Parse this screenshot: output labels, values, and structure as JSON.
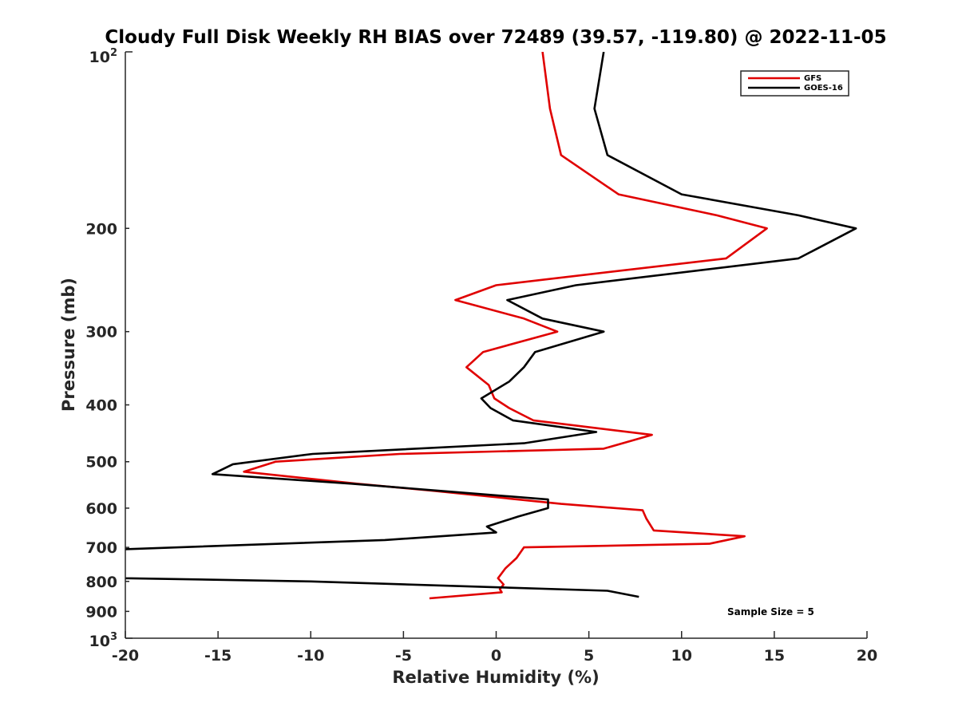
{
  "chart_data": {
    "type": "line",
    "title": "Cloudy Full Disk Weekly RH BIAS over 72489 (39.57, -119.80) @ 2022-11-05",
    "xlabel": "Relative Humidity (%)",
    "ylabel": "Pressure (mb)",
    "xlim": [
      -20,
      20
    ],
    "ylim": [
      100,
      1000
    ],
    "y_scale": "log",
    "y_reversed": true,
    "grid": false,
    "legend_position": "top-right",
    "x_ticks": [
      -20,
      -15,
      -10,
      -5,
      0,
      5,
      10,
      15,
      20
    ],
    "x_tick_labels": [
      "-20",
      "-15",
      "-10",
      "-5",
      "0",
      "5",
      "10",
      "15",
      "20"
    ],
    "y_ticks": [
      200,
      300,
      400,
      500,
      600,
      700,
      800,
      900
    ],
    "y_tick_labels": [
      "200",
      "300",
      "400",
      "500",
      "600",
      "700",
      "800",
      "900"
    ],
    "y_top_label": {
      "base": "10",
      "exp": "2"
    },
    "y_bottom_label": {
      "base": "10",
      "exp": "3"
    },
    "annotation": "Sample Size = 5",
    "series": [
      {
        "name": "GFS",
        "color": "#e00000",
        "points": [
          {
            "x": 2.5,
            "p": 100
          },
          {
            "x": 2.9,
            "p": 125
          },
          {
            "x": 3.5,
            "p": 150
          },
          {
            "x": 6.6,
            "p": 175
          },
          {
            "x": 11.9,
            "p": 190
          },
          {
            "x": 14.6,
            "p": 200
          },
          {
            "x": 12.4,
            "p": 225
          },
          {
            "x": 0.0,
            "p": 250
          },
          {
            "x": -2.2,
            "p": 265
          },
          {
            "x": 1.5,
            "p": 285
          },
          {
            "x": 3.3,
            "p": 300
          },
          {
            "x": -0.7,
            "p": 325
          },
          {
            "x": -1.6,
            "p": 345
          },
          {
            "x": -0.4,
            "p": 370
          },
          {
            "x": -0.1,
            "p": 390
          },
          {
            "x": 0.7,
            "p": 405
          },
          {
            "x": 2.0,
            "p": 425
          },
          {
            "x": 8.4,
            "p": 450
          },
          {
            "x": 5.8,
            "p": 475
          },
          {
            "x": -5.2,
            "p": 485
          },
          {
            "x": -11.9,
            "p": 500
          },
          {
            "x": -13.6,
            "p": 520
          },
          {
            "x": -7.5,
            "p": 545
          },
          {
            "x": -3.5,
            "p": 560
          },
          {
            "x": 3.5,
            "p": 590
          },
          {
            "x": 7.9,
            "p": 605
          },
          {
            "x": 8.1,
            "p": 625
          },
          {
            "x": 8.5,
            "p": 655
          },
          {
            "x": 13.4,
            "p": 670
          },
          {
            "x": 11.5,
            "p": 690
          },
          {
            "x": 1.5,
            "p": 700
          },
          {
            "x": 1.1,
            "p": 730
          },
          {
            "x": 0.5,
            "p": 760
          },
          {
            "x": 0.1,
            "p": 790
          },
          {
            "x": 0.4,
            "p": 810
          },
          {
            "x": 0.2,
            "p": 825
          },
          {
            "x": 0.3,
            "p": 835
          },
          {
            "x": -3.6,
            "p": 855
          }
        ]
      },
      {
        "name": "GOES-16",
        "color": "#000000",
        "points": [
          {
            "x": 5.8,
            "p": 100
          },
          {
            "x": 5.3,
            "p": 125
          },
          {
            "x": 6.0,
            "p": 150
          },
          {
            "x": 10.0,
            "p": 175
          },
          {
            "x": 16.3,
            "p": 190
          },
          {
            "x": 19.4,
            "p": 200
          },
          {
            "x": 16.3,
            "p": 225
          },
          {
            "x": 4.3,
            "p": 250
          },
          {
            "x": 0.6,
            "p": 265
          },
          {
            "x": 2.5,
            "p": 285
          },
          {
            "x": 5.8,
            "p": 300
          },
          {
            "x": 2.1,
            "p": 325
          },
          {
            "x": 1.5,
            "p": 345
          },
          {
            "x": 0.7,
            "p": 365
          },
          {
            "x": -0.8,
            "p": 390
          },
          {
            "x": -0.3,
            "p": 405
          },
          {
            "x": 0.9,
            "p": 425
          },
          {
            "x": 5.4,
            "p": 445
          },
          {
            "x": 1.5,
            "p": 465
          },
          {
            "x": -9.9,
            "p": 485
          },
          {
            "x": -14.2,
            "p": 505
          },
          {
            "x": -15.3,
            "p": 525
          },
          {
            "x": -7.8,
            "p": 545
          },
          {
            "x": -3.2,
            "p": 560
          },
          {
            "x": 2.8,
            "p": 580
          },
          {
            "x": 2.8,
            "p": 600
          },
          {
            "x": 1.2,
            "p": 620
          },
          {
            "x": -0.5,
            "p": 645
          },
          {
            "x": 0.0,
            "p": 660
          },
          {
            "x": -6.0,
            "p": 680
          },
          {
            "x": -20.0,
            "p": 705
          },
          {
            "x": -20.5,
            "p": 725
          },
          {
            "x": -20.5,
            "p": 770
          },
          {
            "x": -20.0,
            "p": 790
          },
          {
            "x": -10.0,
            "p": 800
          },
          {
            "x": 6.0,
            "p": 830
          },
          {
            "x": 7.7,
            "p": 850
          }
        ]
      }
    ]
  }
}
